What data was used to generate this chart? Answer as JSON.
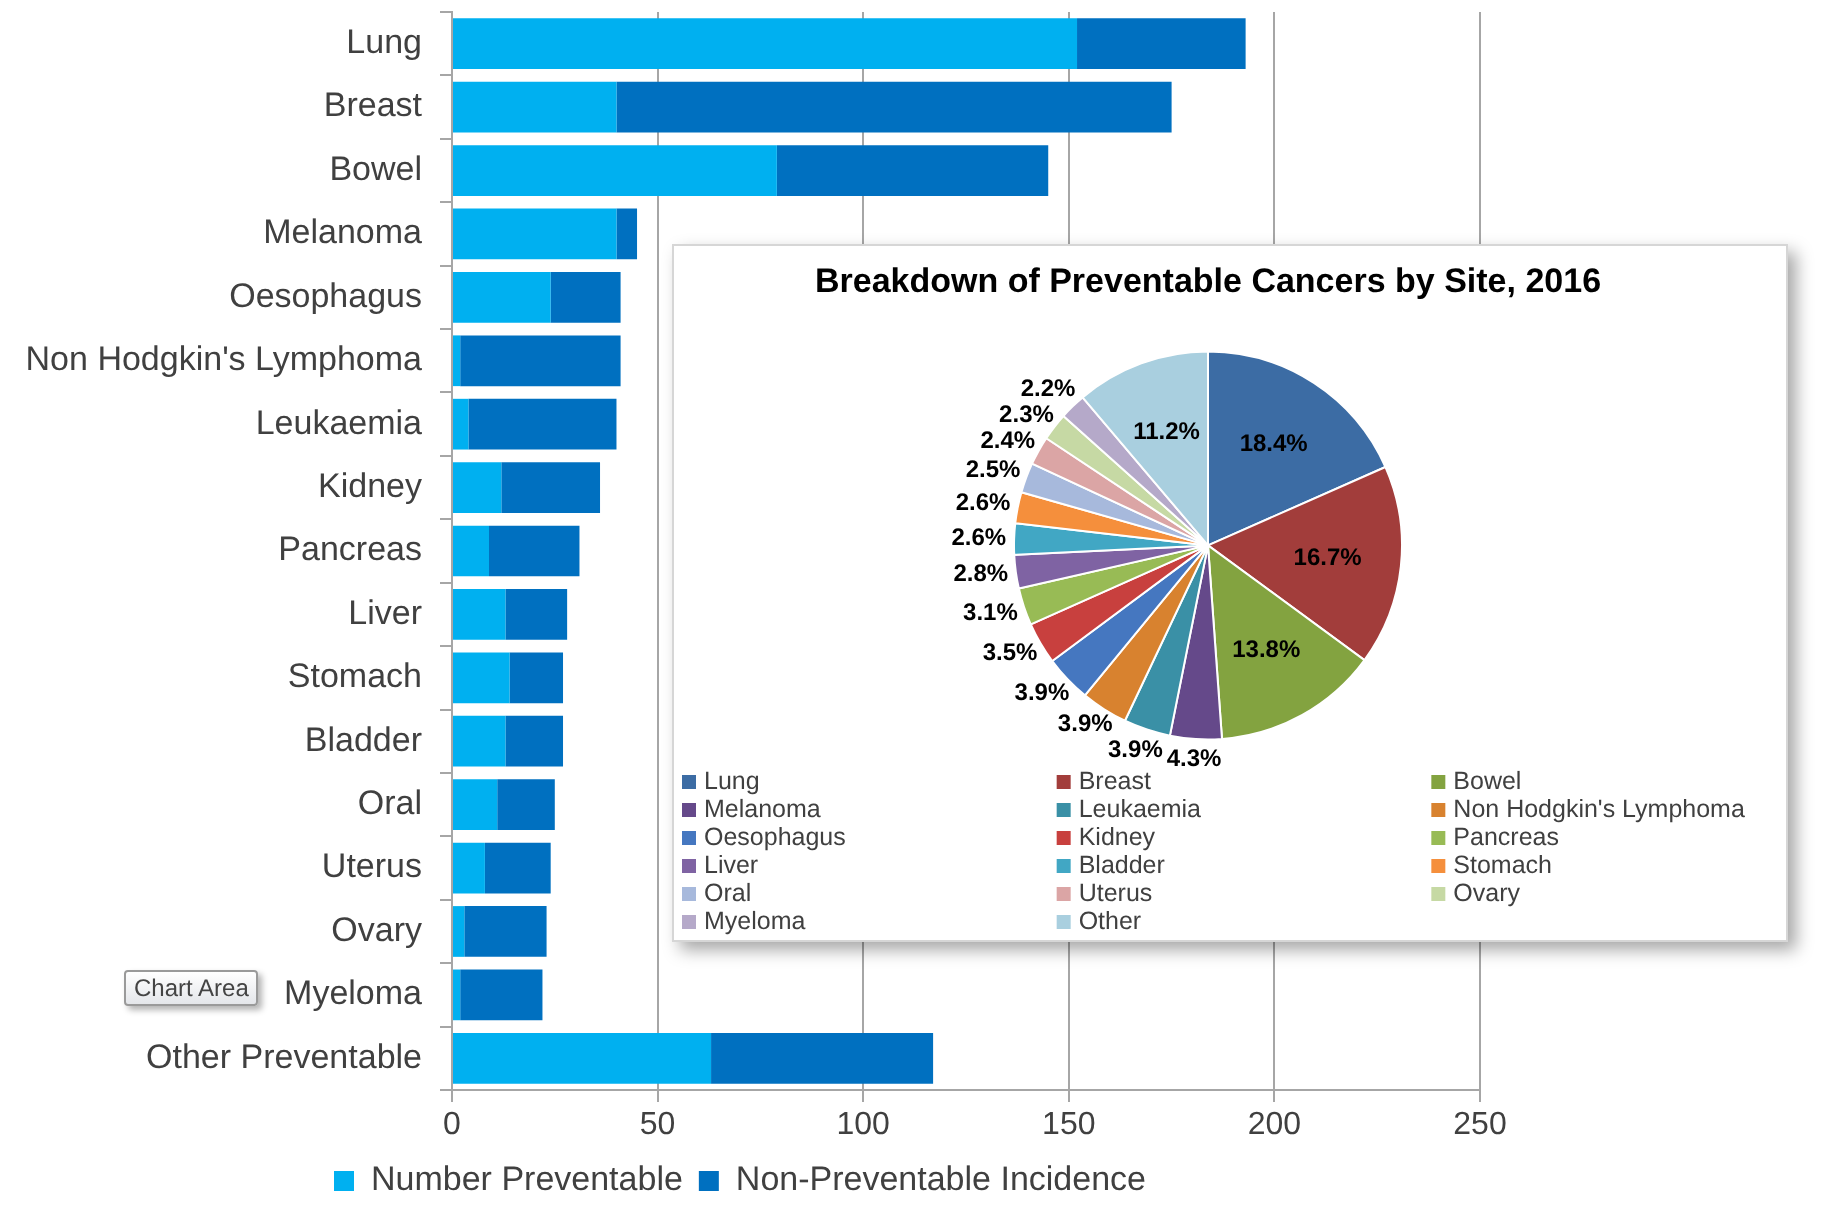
{
  "chart_data": [
    {
      "type": "bar",
      "orientation": "horizontal",
      "stacked": true,
      "categories": [
        "Lung",
        "Breast",
        "Bowel",
        "Melanoma",
        "Oesophagus",
        "Non Hodgkin's Lymphoma",
        "Leukaemia",
        "Kidney",
        "Pancreas",
        "Liver",
        "Stomach",
        "Bladder",
        "Oral",
        "Uterus",
        "Ovary",
        "Myeloma",
        "Other Preventable"
      ],
      "series": [
        {
          "name": "Number Preventable",
          "color": "#00b0f0",
          "values": [
            152,
            40,
            79,
            40,
            24,
            2,
            4,
            12,
            9,
            13,
            14,
            13,
            11,
            8,
            3,
            2,
            63
          ]
        },
        {
          "name": "Non-Preventable Incidence",
          "color": "#0070c0",
          "values": [
            41,
            135,
            66,
            5,
            17,
            39,
            36,
            24,
            22,
            15,
            13,
            14,
            14,
            16,
            20,
            20,
            54
          ]
        }
      ],
      "xlim": [
        0,
        250
      ],
      "xticks": [
        0,
        50,
        100,
        150,
        200,
        250
      ],
      "grid": "x",
      "legend": "bottom",
      "annotations": [
        "Chart Area"
      ]
    },
    {
      "type": "pie",
      "title": "Breakdown of Preventable Cancers by Site, 2016",
      "categories": [
        "Lung",
        "Breast",
        "Bowel",
        "Melanoma",
        "Leukaemia",
        "Non Hodgkin's Lymphoma",
        "Oesophagus",
        "Kidney",
        "Pancreas",
        "Liver",
        "Bladder",
        "Stomach",
        "Oral",
        "Uterus",
        "Ovary",
        "Myeloma",
        "Other"
      ],
      "values": [
        18.4,
        16.7,
        13.8,
        4.3,
        3.9,
        3.9,
        3.9,
        3.5,
        3.1,
        2.8,
        2.6,
        2.6,
        2.5,
        2.4,
        2.3,
        2.2,
        11.2
      ],
      "colors": [
        "#3c6ca4",
        "#a23d3b",
        "#83a340",
        "#65498a",
        "#3a90a6",
        "#d8822f",
        "#4577c0",
        "#c8403e",
        "#98bb55",
        "#7f63a3",
        "#41a7c4",
        "#f58f3c",
        "#a7b9dc",
        "#dba5a5",
        "#c6d9a4",
        "#b5a9c9",
        "#a9cfdf"
      ],
      "value_labels": [
        "18.4%",
        "16.7%",
        "13.8%",
        "4.3%",
        "3.9%",
        "3.9%",
        "3.9%",
        "3.5%",
        "3.1%",
        "2.8%",
        "2.6%",
        "2.6%",
        "2.5%",
        "2.4%",
        "2.3%",
        "2.2%",
        "11.2%"
      ],
      "legend": "bottom"
    }
  ]
}
